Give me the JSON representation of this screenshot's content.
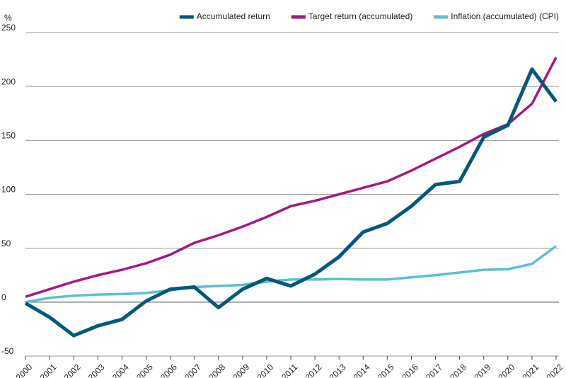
{
  "chart_data": {
    "type": "line",
    "y_label": "%",
    "categories": [
      "2000",
      "2001",
      "2002",
      "2003",
      "2004",
      "2005",
      "2006",
      "2007",
      "2008",
      "2009",
      "2010",
      "2011",
      "2012",
      "2013",
      "2014",
      "2015",
      "2016",
      "2017",
      "2018",
      "2019",
      "2020",
      "2021",
      "2022"
    ],
    "series": [
      {
        "name": "Accumulated return",
        "color": "#00587a",
        "width": 5,
        "values": [
          -1,
          -14,
          -31,
          -22,
          -16,
          1,
          12,
          14,
          -5,
          12,
          22,
          15,
          26,
          42,
          65,
          73,
          89,
          109,
          112,
          153,
          164,
          216,
          186
        ]
      },
      {
        "name": "Target return (accumulated)",
        "color": "#a3197f",
        "width": 3.5,
        "values": [
          5,
          12,
          19,
          25,
          30,
          36,
          44,
          55,
          62,
          70,
          79,
          89,
          94,
          100,
          106,
          112,
          122,
          133,
          144,
          156,
          165,
          184,
          227
        ]
      },
      {
        "name": "Inflation (accumulated) (CPI)",
        "color": "#5bc0cf",
        "width": 3.5,
        "values": [
          0,
          4,
          6,
          7,
          7.5,
          8.5,
          11,
          14,
          15,
          16,
          19,
          21,
          21,
          21.5,
          21,
          21,
          23,
          25,
          27.5,
          30,
          30.5,
          35.5,
          52
        ]
      }
    ],
    "ylim": [
      -50,
      250
    ],
    "yticks": [
      -50,
      0,
      50,
      100,
      150,
      200,
      250
    ],
    "grid": true
  }
}
